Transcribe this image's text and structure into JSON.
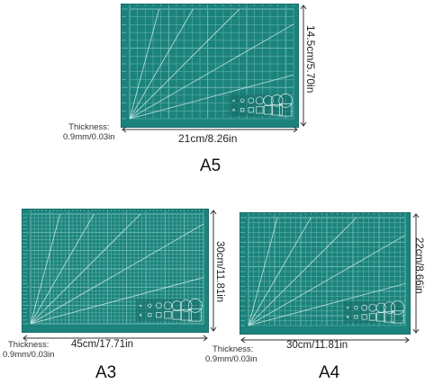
{
  "colors": {
    "mat": "#1c837c",
    "mat_dark": "#146a64",
    "grid": "#7cc4be",
    "line": "#d8f0ee",
    "border": "#0f5752"
  },
  "mats": [
    {
      "id": "a5",
      "label": "A5",
      "width_text": "21cm/8.26in",
      "height_text": "14.5cm/5.70in",
      "thickness_label": "Thickness:",
      "thickness_value": "0.9mm/0.03in",
      "cols": 21,
      "rows": 14
    },
    {
      "id": "a3",
      "label": "A3",
      "width_text": "45cm/17.71in",
      "height_text": "30cm/11.81in",
      "thickness_label": "Thickness:",
      "thickness_value": "0.9mm/0.03in",
      "cols": 45,
      "rows": 30
    },
    {
      "id": "a4",
      "label": "A4",
      "width_text": "30cm/11.81in",
      "height_text": "22cm/8.66in",
      "thickness_label": "Thickness:",
      "thickness_value": "0.9mm/0.03in",
      "cols": 30,
      "rows": 22
    }
  ]
}
